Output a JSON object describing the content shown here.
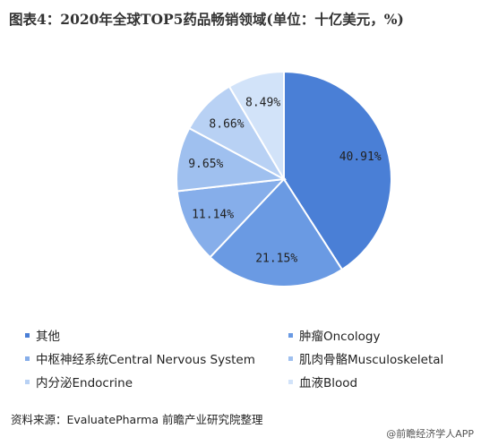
{
  "title": "图表4：2020年全球TOP5药品畅销领域(单位：十亿美元，%)",
  "source": "资料来源：EvaluatePharma 前瞻产业研究院整理",
  "footer_brand": "@前瞻经济学人APP",
  "chart_data": {
    "type": "pie",
    "title": "图表4：2020年全球TOP5药品畅销领域(单位：十亿美元，%)",
    "categories": [
      "其他",
      "肿瘤Oncology",
      "中枢神经系统Central Nervous System",
      "肌肉骨骼Musculoskeletal",
      "内分泌Endocrine",
      "血液Blood"
    ],
    "values": [
      40.91,
      21.15,
      11.14,
      9.65,
      8.66,
      8.49
    ],
    "labels": [
      "40.91%",
      "21.15%",
      "11.14%",
      "9.65%",
      "8.66%",
      "8.49%"
    ],
    "colors": [
      "#4a7fd6",
      "#6a9ae3",
      "#86aeea",
      "#9fc0ef",
      "#b8d1f4",
      "#d2e3f9"
    ],
    "legend_position": "bottom"
  }
}
